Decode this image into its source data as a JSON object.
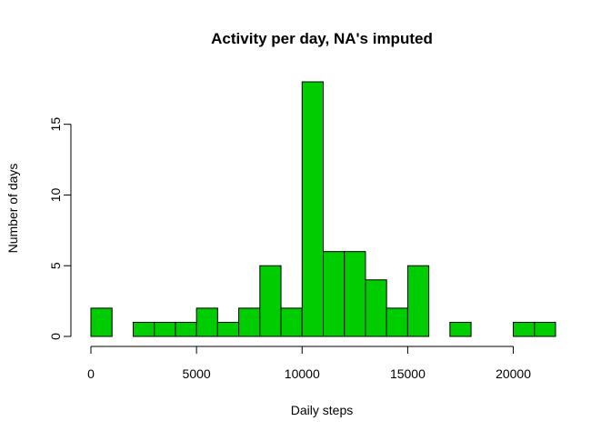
{
  "chart_data": {
    "type": "bar",
    "title": "Activity per day, NA's imputed",
    "xlabel": "Daily steps",
    "ylabel": "Number of days",
    "bin_width": 1000,
    "bins": [
      {
        "start": 0,
        "end": 1000,
        "count": 2
      },
      {
        "start": 1000,
        "end": 2000,
        "count": 0
      },
      {
        "start": 2000,
        "end": 3000,
        "count": 1
      },
      {
        "start": 3000,
        "end": 4000,
        "count": 1
      },
      {
        "start": 4000,
        "end": 5000,
        "count": 1
      },
      {
        "start": 5000,
        "end": 6000,
        "count": 2
      },
      {
        "start": 6000,
        "end": 7000,
        "count": 1
      },
      {
        "start": 7000,
        "end": 8000,
        "count": 2
      },
      {
        "start": 8000,
        "end": 9000,
        "count": 5
      },
      {
        "start": 9000,
        "end": 10000,
        "count": 2
      },
      {
        "start": 10000,
        "end": 11000,
        "count": 18
      },
      {
        "start": 11000,
        "end": 12000,
        "count": 6
      },
      {
        "start": 12000,
        "end": 13000,
        "count": 6
      },
      {
        "start": 13000,
        "end": 14000,
        "count": 4
      },
      {
        "start": 14000,
        "end": 15000,
        "count": 2
      },
      {
        "start": 15000,
        "end": 16000,
        "count": 5
      },
      {
        "start": 16000,
        "end": 17000,
        "count": 0
      },
      {
        "start": 17000,
        "end": 18000,
        "count": 1
      },
      {
        "start": 18000,
        "end": 19000,
        "count": 0
      },
      {
        "start": 19000,
        "end": 20000,
        "count": 0
      },
      {
        "start": 20000,
        "end": 21000,
        "count": 1
      },
      {
        "start": 21000,
        "end": 22000,
        "count": 1
      }
    ],
    "xlim": [
      0,
      22000
    ],
    "ylim": [
      0,
      18
    ],
    "x_ticks": [
      0,
      5000,
      10000,
      15000,
      20000
    ],
    "x_tick_labels": [
      "0",
      "5000",
      "10000",
      "15000",
      "20000"
    ],
    "y_ticks": [
      0,
      5,
      10,
      15
    ],
    "y_tick_labels": [
      "0",
      "5",
      "10",
      "15"
    ],
    "bar_color": "#00cd00",
    "grid": false,
    "legend": "none"
  }
}
